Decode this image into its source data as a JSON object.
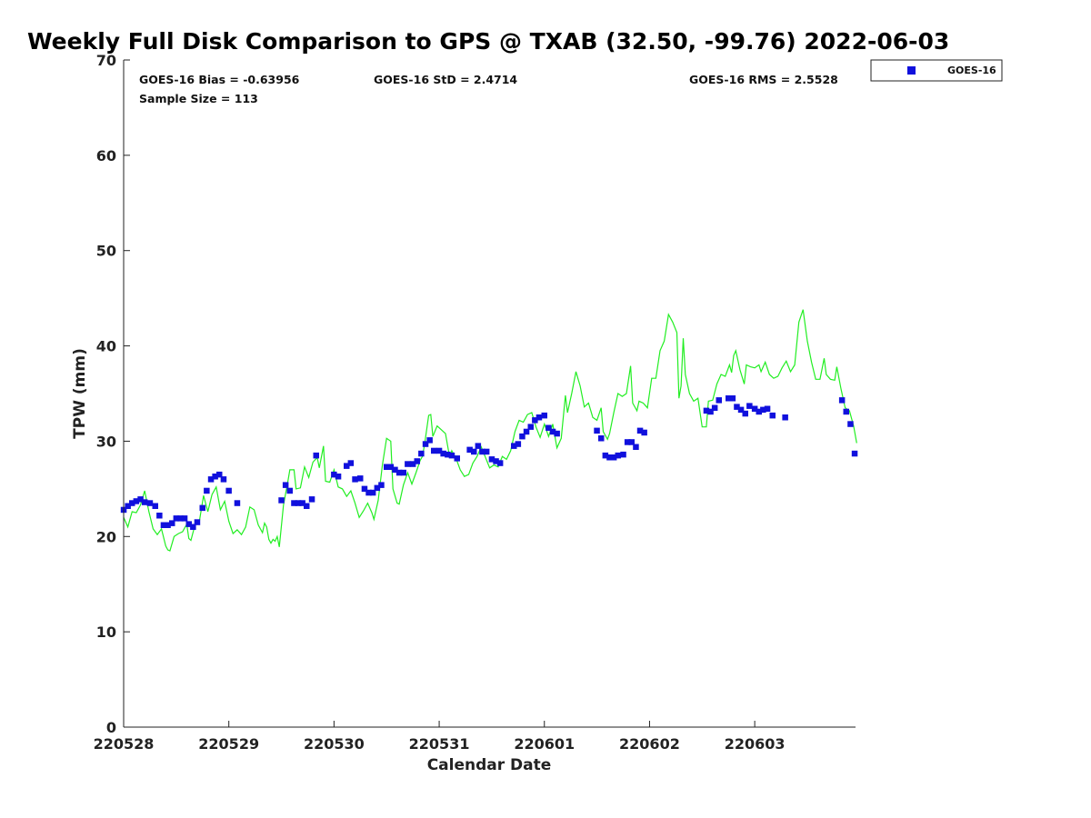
{
  "chart_data": {
    "type": "scatter",
    "title": "Weekly Full Disk Comparison to GPS @ TXAB (32.50, -99.76) 2022-06-03",
    "xlabel": "Calendar Date",
    "ylabel": "TPW (mm)",
    "xlim": [
      "220528",
      "220604 23:00"
    ],
    "ylim": [
      0,
      70
    ],
    "yticks": [
      "0",
      "10",
      "20",
      "30",
      "40",
      "50",
      "60",
      "70"
    ],
    "xticks": [
      "220528",
      "220529",
      "220530",
      "220531",
      "220601",
      "220602",
      "220603"
    ],
    "stats": {
      "bias": "GOES-16 Bias = -0.63956",
      "std": "GOES-16 StD = 2.4714",
      "rms": "GOES-16 RMS = 2.5528",
      "sample": "Sample Size = 113"
    },
    "legend": {
      "placement": "top-right, outside plot",
      "label": "GOES-16"
    },
    "colors": {
      "goes": "#1010dd",
      "gps": "#22ee22"
    },
    "series": [
      {
        "name": "GOES-16",
        "marker": "square",
        "points": [
          [
            0.0,
            22.8
          ],
          [
            0.04,
            23.2
          ],
          [
            0.08,
            23.5
          ],
          [
            0.12,
            23.7
          ],
          [
            0.16,
            23.9
          ],
          [
            0.2,
            23.6
          ],
          [
            0.25,
            23.5
          ],
          [
            0.3,
            23.2
          ],
          [
            0.34,
            22.2
          ],
          [
            0.38,
            21.2
          ],
          [
            0.42,
            21.2
          ],
          [
            0.46,
            21.4
          ],
          [
            0.5,
            21.9
          ],
          [
            0.54,
            21.9
          ],
          [
            0.58,
            21.9
          ],
          [
            0.62,
            21.3
          ],
          [
            0.66,
            21.0
          ],
          [
            0.7,
            21.5
          ],
          [
            0.75,
            23.0
          ],
          [
            0.79,
            24.8
          ],
          [
            0.83,
            26.0
          ],
          [
            0.87,
            26.3
          ],
          [
            0.91,
            26.5
          ],
          [
            0.95,
            26.0
          ],
          [
            1.0,
            24.8
          ],
          [
            1.08,
            23.5
          ],
          [
            1.5,
            23.8
          ],
          [
            1.54,
            25.4
          ],
          [
            1.58,
            24.8
          ],
          [
            1.62,
            23.5
          ],
          [
            1.66,
            23.5
          ],
          [
            1.7,
            23.5
          ],
          [
            1.74,
            23.2
          ],
          [
            1.79,
            23.9
          ],
          [
            1.83,
            28.5
          ],
          [
            2.0,
            26.5
          ],
          [
            2.04,
            26.3
          ],
          [
            2.12,
            27.4
          ],
          [
            2.16,
            27.7
          ],
          [
            2.2,
            26.0
          ],
          [
            2.25,
            26.1
          ],
          [
            2.29,
            25.0
          ],
          [
            2.33,
            24.6
          ],
          [
            2.37,
            24.6
          ],
          [
            2.41,
            25.1
          ],
          [
            2.45,
            25.4
          ],
          [
            2.5,
            27.3
          ],
          [
            2.54,
            27.3
          ],
          [
            2.58,
            27.0
          ],
          [
            2.62,
            26.7
          ],
          [
            2.66,
            26.7
          ],
          [
            2.7,
            27.6
          ],
          [
            2.75,
            27.6
          ],
          [
            2.79,
            27.9
          ],
          [
            2.83,
            28.7
          ],
          [
            2.87,
            29.7
          ],
          [
            2.91,
            30.1
          ],
          [
            2.95,
            29.0
          ],
          [
            3.0,
            29.0
          ],
          [
            3.04,
            28.7
          ],
          [
            3.08,
            28.6
          ],
          [
            3.12,
            28.5
          ],
          [
            3.17,
            28.2
          ],
          [
            3.29,
            29.1
          ],
          [
            3.33,
            28.9
          ],
          [
            3.37,
            29.5
          ],
          [
            3.41,
            28.9
          ],
          [
            3.45,
            28.9
          ],
          [
            3.5,
            28.1
          ],
          [
            3.54,
            27.9
          ],
          [
            3.58,
            27.7
          ],
          [
            3.71,
            29.5
          ],
          [
            3.75,
            29.7
          ],
          [
            3.79,
            30.5
          ],
          [
            3.83,
            31.0
          ],
          [
            3.87,
            31.5
          ],
          [
            3.91,
            32.2
          ],
          [
            3.95,
            32.5
          ],
          [
            4.0,
            32.7
          ],
          [
            4.04,
            31.4
          ],
          [
            4.08,
            31.0
          ],
          [
            4.12,
            30.8
          ],
          [
            4.5,
            31.1
          ],
          [
            4.54,
            30.3
          ],
          [
            4.58,
            28.5
          ],
          [
            4.62,
            28.3
          ],
          [
            4.66,
            28.3
          ],
          [
            4.7,
            28.5
          ],
          [
            4.75,
            28.6
          ],
          [
            4.79,
            29.9
          ],
          [
            4.83,
            29.9
          ],
          [
            4.87,
            29.4
          ],
          [
            4.91,
            31.1
          ],
          [
            4.95,
            30.9
          ],
          [
            5.54,
            33.2
          ],
          [
            5.58,
            33.1
          ],
          [
            5.62,
            33.5
          ],
          [
            5.66,
            34.3
          ],
          [
            5.75,
            34.5
          ],
          [
            5.79,
            34.5
          ],
          [
            5.83,
            33.6
          ],
          [
            5.87,
            33.3
          ],
          [
            5.91,
            32.9
          ],
          [
            5.95,
            33.7
          ],
          [
            6.0,
            33.4
          ],
          [
            6.04,
            33.1
          ],
          [
            6.08,
            33.3
          ],
          [
            6.12,
            33.4
          ],
          [
            6.17,
            32.7
          ],
          [
            6.29,
            32.5
          ],
          [
            6.83,
            34.3
          ],
          [
            6.87,
            33.1
          ],
          [
            6.91,
            31.8
          ],
          [
            6.95,
            28.7
          ]
        ]
      },
      {
        "name": "GPS",
        "marker": "line",
        "points": [
          [
            0.0,
            22.0
          ],
          [
            0.04,
            21.0
          ],
          [
            0.08,
            22.6
          ],
          [
            0.12,
            22.5
          ],
          [
            0.16,
            23.3
          ],
          [
            0.2,
            24.8
          ],
          [
            0.24,
            22.6
          ],
          [
            0.28,
            20.8
          ],
          [
            0.32,
            20.2
          ],
          [
            0.36,
            20.8
          ],
          [
            0.4,
            19.0
          ],
          [
            0.42,
            18.6
          ],
          [
            0.44,
            18.5
          ],
          [
            0.48,
            20.0
          ],
          [
            0.52,
            20.3
          ],
          [
            0.56,
            20.5
          ],
          [
            0.6,
            21.3
          ],
          [
            0.62,
            19.8
          ],
          [
            0.64,
            19.6
          ],
          [
            0.68,
            21.3
          ],
          [
            0.72,
            21.6
          ],
          [
            0.76,
            24.3
          ],
          [
            0.8,
            22.6
          ],
          [
            0.84,
            24.4
          ],
          [
            0.88,
            25.2
          ],
          [
            0.92,
            22.8
          ],
          [
            0.96,
            23.7
          ],
          [
            1.0,
            21.6
          ],
          [
            1.04,
            20.3
          ],
          [
            1.08,
            20.7
          ],
          [
            1.12,
            20.2
          ],
          [
            1.16,
            21.0
          ],
          [
            1.2,
            23.1
          ],
          [
            1.24,
            22.8
          ],
          [
            1.28,
            21.2
          ],
          [
            1.32,
            20.4
          ],
          [
            1.34,
            21.4
          ],
          [
            1.36,
            21.0
          ],
          [
            1.38,
            19.7
          ],
          [
            1.4,
            19.3
          ],
          [
            1.42,
            19.7
          ],
          [
            1.44,
            19.5
          ],
          [
            1.46,
            20.0
          ],
          [
            1.48,
            18.9
          ],
          [
            1.52,
            23.3
          ],
          [
            1.56,
            25.7
          ],
          [
            1.58,
            27.0
          ],
          [
            1.62,
            27.0
          ],
          [
            1.64,
            25.0
          ],
          [
            1.68,
            25.1
          ],
          [
            1.72,
            27.3
          ],
          [
            1.76,
            26.2
          ],
          [
            1.8,
            27.8
          ],
          [
            1.84,
            28.3
          ],
          [
            1.86,
            27.2
          ],
          [
            1.9,
            29.5
          ],
          [
            1.92,
            25.8
          ],
          [
            1.96,
            25.7
          ],
          [
            2.0,
            27.0
          ],
          [
            2.04,
            25.2
          ],
          [
            2.08,
            25.0
          ],
          [
            2.12,
            24.2
          ],
          [
            2.16,
            24.8
          ],
          [
            2.2,
            23.5
          ],
          [
            2.24,
            22.0
          ],
          [
            2.28,
            22.7
          ],
          [
            2.32,
            23.5
          ],
          [
            2.36,
            22.5
          ],
          [
            2.38,
            21.8
          ],
          [
            2.42,
            23.8
          ],
          [
            2.46,
            27.5
          ],
          [
            2.5,
            30.3
          ],
          [
            2.54,
            30.0
          ],
          [
            2.56,
            25.0
          ],
          [
            2.6,
            23.5
          ],
          [
            2.62,
            23.4
          ],
          [
            2.66,
            25.4
          ],
          [
            2.7,
            26.7
          ],
          [
            2.74,
            25.5
          ],
          [
            2.78,
            26.7
          ],
          [
            2.82,
            28.0
          ],
          [
            2.84,
            28.4
          ],
          [
            2.86,
            29.6
          ],
          [
            2.9,
            32.7
          ],
          [
            2.92,
            32.8
          ],
          [
            2.94,
            30.5
          ],
          [
            2.98,
            31.6
          ],
          [
            3.02,
            31.2
          ],
          [
            3.06,
            30.8
          ],
          [
            3.1,
            28.3
          ],
          [
            3.12,
            29.0
          ],
          [
            3.16,
            28.2
          ],
          [
            3.2,
            27.0
          ],
          [
            3.24,
            26.3
          ],
          [
            3.28,
            26.5
          ],
          [
            3.32,
            27.7
          ],
          [
            3.36,
            28.4
          ],
          [
            3.4,
            29.4
          ],
          [
            3.44,
            28.3
          ],
          [
            3.48,
            27.2
          ],
          [
            3.52,
            27.5
          ],
          [
            3.56,
            27.3
          ],
          [
            3.6,
            28.4
          ],
          [
            3.64,
            28.1
          ],
          [
            3.68,
            29.0
          ],
          [
            3.72,
            31.0
          ],
          [
            3.76,
            32.2
          ],
          [
            3.8,
            32.0
          ],
          [
            3.84,
            32.8
          ],
          [
            3.88,
            33.0
          ],
          [
            3.92,
            31.5
          ],
          [
            3.96,
            30.4
          ],
          [
            4.0,
            31.8
          ],
          [
            4.04,
            30.5
          ],
          [
            4.08,
            31.8
          ],
          [
            4.12,
            29.3
          ],
          [
            4.16,
            30.3
          ],
          [
            4.2,
            34.8
          ],
          [
            4.22,
            33.0
          ],
          [
            4.26,
            35.0
          ],
          [
            4.3,
            37.3
          ],
          [
            4.34,
            35.8
          ],
          [
            4.38,
            33.6
          ],
          [
            4.42,
            34.0
          ],
          [
            4.46,
            32.5
          ],
          [
            4.5,
            32.2
          ],
          [
            4.54,
            33.5
          ],
          [
            4.56,
            31.0
          ],
          [
            4.6,
            30.2
          ],
          [
            4.62,
            30.8
          ],
          [
            4.66,
            33.0
          ],
          [
            4.7,
            35.0
          ],
          [
            4.74,
            34.7
          ],
          [
            4.78,
            35.0
          ],
          [
            4.82,
            37.9
          ],
          [
            4.84,
            34.0
          ],
          [
            4.88,
            33.2
          ],
          [
            4.9,
            34.2
          ],
          [
            4.94,
            34.0
          ],
          [
            4.98,
            33.5
          ],
          [
            5.02,
            36.6
          ],
          [
            5.06,
            36.6
          ],
          [
            5.1,
            39.5
          ],
          [
            5.14,
            40.5
          ],
          [
            5.18,
            43.3
          ],
          [
            5.22,
            42.5
          ],
          [
            5.26,
            41.4
          ],
          [
            5.28,
            34.5
          ],
          [
            5.3,
            35.8
          ],
          [
            5.32,
            40.8
          ],
          [
            5.34,
            37.0
          ],
          [
            5.38,
            35.0
          ],
          [
            5.42,
            34.2
          ],
          [
            5.46,
            34.5
          ],
          [
            5.5,
            31.5
          ],
          [
            5.54,
            31.5
          ],
          [
            5.56,
            34.2
          ],
          [
            5.6,
            34.3
          ],
          [
            5.64,
            36.0
          ],
          [
            5.68,
            37.0
          ],
          [
            5.72,
            36.8
          ],
          [
            5.76,
            38.0
          ],
          [
            5.78,
            37.2
          ],
          [
            5.8,
            39.0
          ],
          [
            5.82,
            39.5
          ],
          [
            5.86,
            37.5
          ],
          [
            5.9,
            36.0
          ],
          [
            5.92,
            38.0
          ],
          [
            5.96,
            37.8
          ],
          [
            6.0,
            37.7
          ],
          [
            6.04,
            38.0
          ],
          [
            6.06,
            37.3
          ],
          [
            6.1,
            38.3
          ],
          [
            6.14,
            37.0
          ],
          [
            6.18,
            36.6
          ],
          [
            6.22,
            36.8
          ],
          [
            6.26,
            37.7
          ],
          [
            6.3,
            38.4
          ],
          [
            6.34,
            37.3
          ],
          [
            6.38,
            38.0
          ],
          [
            6.42,
            42.5
          ],
          [
            6.46,
            43.8
          ],
          [
            6.5,
            40.5
          ],
          [
            6.54,
            38.3
          ],
          [
            6.58,
            36.5
          ],
          [
            6.62,
            36.5
          ],
          [
            6.66,
            38.7
          ],
          [
            6.68,
            37.0
          ],
          [
            6.72,
            36.5
          ],
          [
            6.76,
            36.4
          ],
          [
            6.78,
            37.8
          ],
          [
            6.82,
            35.5
          ],
          [
            6.86,
            33.5
          ],
          [
            6.9,
            33.2
          ],
          [
            6.94,
            31.6
          ],
          [
            6.97,
            29.8
          ]
        ]
      }
    ]
  }
}
